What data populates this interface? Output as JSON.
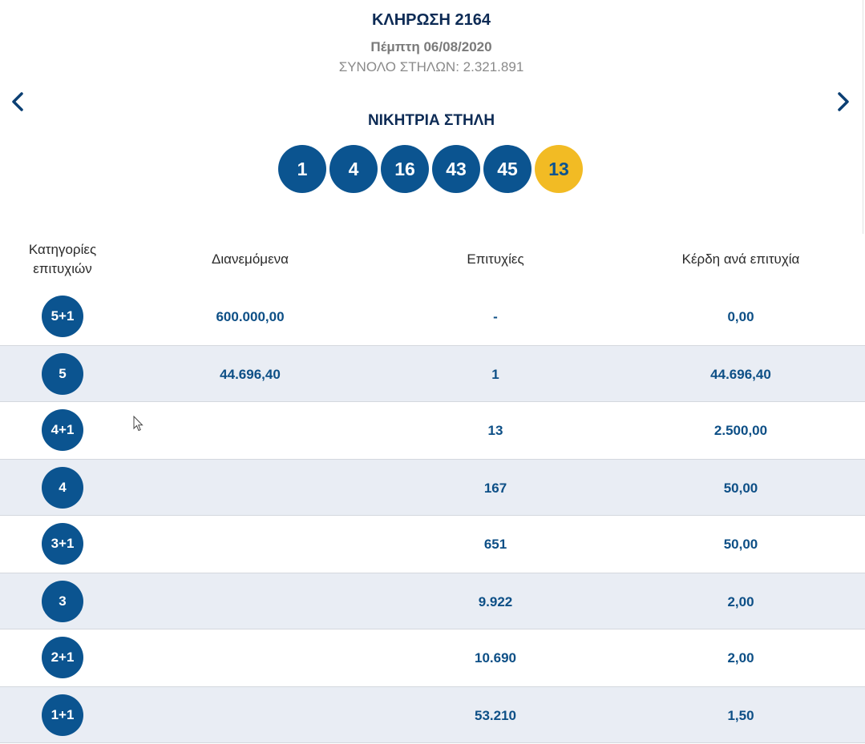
{
  "draw": {
    "title": "ΚΛΗΡΩΣΗ 2164",
    "date": "Πέμπτη 06/08/2020",
    "total_columns": "ΣΥΝΟΛΟ ΣΤΗΛΩΝ: 2.321.891"
  },
  "navigation": {
    "prev_icon": "chevron-left-icon",
    "next_icon": "chevron-right-icon"
  },
  "winning": {
    "label": "ΝΙΚΗΤΡΙΑ ΣΤΗΛΗ",
    "numbers": [
      "1",
      "4",
      "16",
      "43",
      "45"
    ],
    "bonus": "13"
  },
  "table": {
    "headers": {
      "category": "Κατηγορίες επιτυχιών",
      "distributed": "Διανεμόμενα",
      "successes": "Επιτυχίες",
      "prize": "Κέρδη ανά επιτυχία"
    },
    "rows": [
      {
        "category": "5+1",
        "distributed": "600.000,00",
        "successes": "-",
        "prize": "0,00"
      },
      {
        "category": "5",
        "distributed": "44.696,40",
        "successes": "1",
        "prize": "44.696,40"
      },
      {
        "category": "4+1",
        "distributed": "",
        "successes": "13",
        "prize": "2.500,00"
      },
      {
        "category": "4",
        "distributed": "",
        "successes": "167",
        "prize": "50,00"
      },
      {
        "category": "3+1",
        "distributed": "",
        "successes": "651",
        "prize": "50,00"
      },
      {
        "category": "3",
        "distributed": "",
        "successes": "9.922",
        "prize": "2,00"
      },
      {
        "category": "2+1",
        "distributed": "",
        "successes": "10.690",
        "prize": "2,00"
      },
      {
        "category": "1+1",
        "distributed": "",
        "successes": "53.210",
        "prize": "1,50"
      }
    ]
  },
  "colors": {
    "ball": "#0b5490",
    "bonus_ball": "#f2bb24",
    "title": "#0d2b55",
    "row_alt": "#e9edf4"
  }
}
